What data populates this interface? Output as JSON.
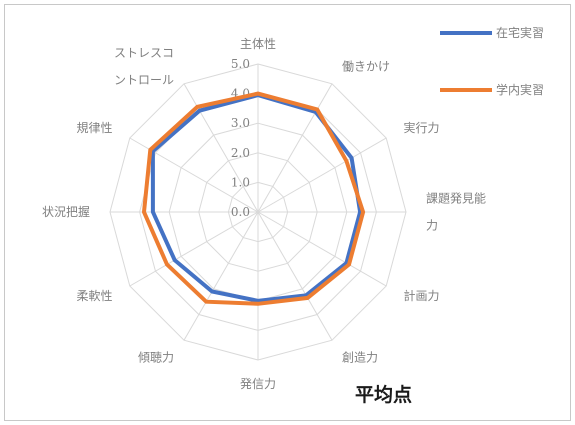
{
  "chart_data": {
    "type": "radar",
    "categories": [
      "主体性",
      "働きかけ",
      "実行力",
      "課題発見能力",
      "計画力",
      "創造力",
      "発信力",
      "傾聴力",
      "柔軟性",
      "状況把握",
      "規律性",
      "ストレスコントロール"
    ],
    "category_lines": [
      [
        "主体性"
      ],
      [
        "働きかけ"
      ],
      [
        "実行力"
      ],
      [
        "課題発見能",
        "力"
      ],
      [
        "計画力"
      ],
      [
        "創造力"
      ],
      [
        "発信力"
      ],
      [
        "傾聴力"
      ],
      [
        "柔軟性"
      ],
      [
        "状況把握"
      ],
      [
        "規律性"
      ],
      [
        "ストレスコ",
        "ントロール"
      ]
    ],
    "rlim": [
      0,
      5
    ],
    "ticks": [
      "0.0",
      "1.0",
      "2.0",
      "3.0",
      "4.0",
      "5.0"
    ],
    "grid": true,
    "legend_position": "top-right",
    "series": [
      {
        "name": "在宅実習",
        "color": "#4472c4",
        "values": [
          3.95,
          3.9,
          3.65,
          3.45,
          3.45,
          3.25,
          3.0,
          3.1,
          3.25,
          3.55,
          4.1,
          3.95
        ]
      },
      {
        "name": "学内実習",
        "color": "#ed7d31",
        "values": [
          4.0,
          4.0,
          3.45,
          3.55,
          3.55,
          3.35,
          3.1,
          3.5,
          3.55,
          3.85,
          4.2,
          4.1
        ]
      }
    ],
    "annotation": "平均点"
  }
}
